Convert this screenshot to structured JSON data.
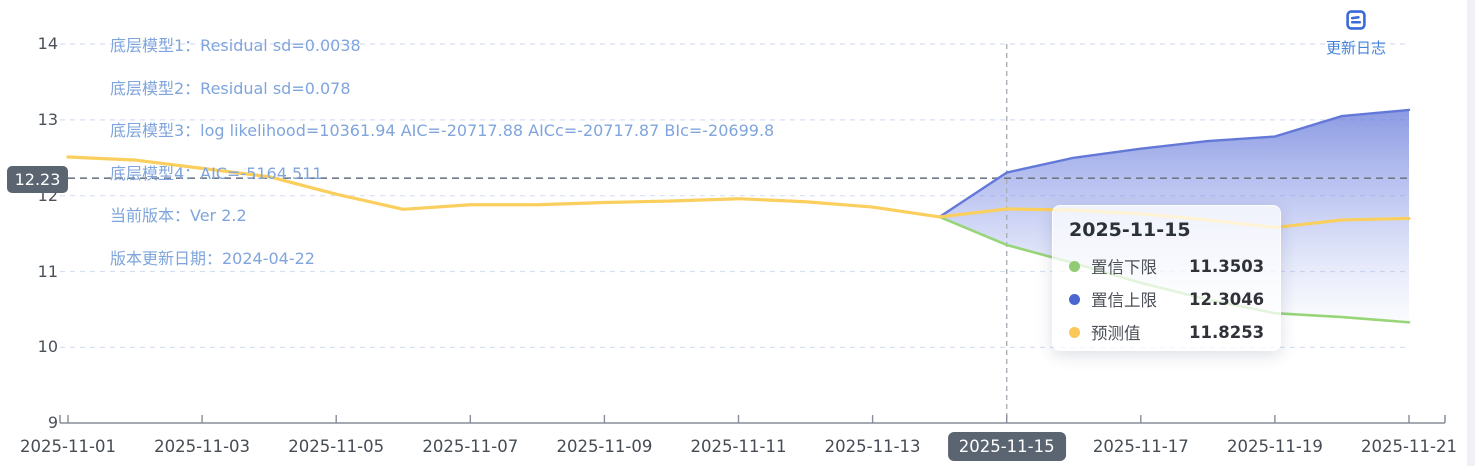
{
  "panel": {
    "update_log_label": "更新日志"
  },
  "annotations": [
    "底层模型1：Residual sd=0.0038",
    "底层模型2：Residual sd=0.078",
    "底层模型3：log likelihood=10361.94 AIC=-20717.88 AICc=-20717.87 BIc=-20699.8",
    "底层模型4：AIC=-5164.511",
    "当前版本：Ver 2.2",
    "版本更新日期：2024-04-22"
  ],
  "y_axis_pointer": {
    "label": "12.23",
    "value": 12.23
  },
  "tooltip": {
    "title": "2025-11-15",
    "rows": [
      {
        "label": "置信下限",
        "value": "11.3503",
        "color": "#91cc75"
      },
      {
        "label": "置信上限",
        "value": "12.3046",
        "color": "#4a67cf"
      },
      {
        "label": "预测值",
        "value": "11.8253",
        "color": "#fac858"
      }
    ]
  },
  "colors": {
    "forecast_line": "#fbcf5e",
    "upper_line": "#6478d8",
    "lower_line": "#98d579",
    "band_fill_top": "#6b7edb",
    "band_fill_bottom": "#aebdf0",
    "grid_line": "#d7dff2",
    "crosshair_dark": "#6f7986",
    "crosshair_light": "#a9b0ba",
    "axis": "#878e97",
    "pointer_bg": "#5b6571",
    "annotation_text": "#7fa5dc",
    "update_log_blue": "#3a68d8"
  },
  "chart_data": {
    "type": "line",
    "title": "",
    "xlabel": "",
    "ylabel": "",
    "ylim": [
      9,
      14
    ],
    "y_ticks": [
      9,
      10,
      11,
      12,
      13,
      14
    ],
    "grid": "horizontal-dashed",
    "x": [
      "2025-11-01",
      "2025-11-02",
      "2025-11-03",
      "2025-11-04",
      "2025-11-05",
      "2025-11-06",
      "2025-11-07",
      "2025-11-08",
      "2025-11-09",
      "2025-11-10",
      "2025-11-11",
      "2025-11-12",
      "2025-11-13",
      "2025-11-14",
      "2025-11-15",
      "2025-11-16",
      "2025-11-17",
      "2025-11-18",
      "2025-11-19",
      "2025-11-20",
      "2025-11-21"
    ],
    "x_tick_labels": [
      "2025-11-01",
      "2025-11-03",
      "2025-11-05",
      "2025-11-07",
      "2025-11-09",
      "2025-11-11",
      "2025-11-13",
      "2025-11-15",
      "2025-11-17",
      "2025-11-19",
      "2025-11-21"
    ],
    "highlighted_x_label": "2025-11-15",
    "crosshair": {
      "x": "2025-11-15",
      "y": 12.23
    },
    "band": {
      "upper": "置信上限",
      "lower": "置信下限",
      "fill": "vertical-blue-gradient"
    },
    "series": [
      {
        "name": "置信下限",
        "color": "#98d579",
        "values": [
          null,
          null,
          null,
          null,
          null,
          null,
          null,
          null,
          null,
          null,
          null,
          null,
          null,
          11.72,
          11.3503,
          11.11,
          10.85,
          10.63,
          10.45,
          10.4,
          10.33
        ]
      },
      {
        "name": "置信上限",
        "color": "#6478d8",
        "values": [
          null,
          null,
          null,
          null,
          null,
          null,
          null,
          null,
          null,
          null,
          null,
          null,
          null,
          11.72,
          12.3046,
          12.5,
          12.62,
          12.72,
          12.78,
          13.05,
          13.13
        ]
      },
      {
        "name": "预测值",
        "color": "#fbcf5e",
        "values": [
          12.51,
          12.47,
          12.36,
          12.25,
          12.02,
          11.82,
          11.88,
          11.88,
          11.91,
          11.93,
          11.96,
          11.92,
          11.85,
          11.72,
          11.8253,
          11.81,
          11.76,
          11.68,
          11.58,
          11.68,
          11.7
        ]
      }
    ]
  }
}
